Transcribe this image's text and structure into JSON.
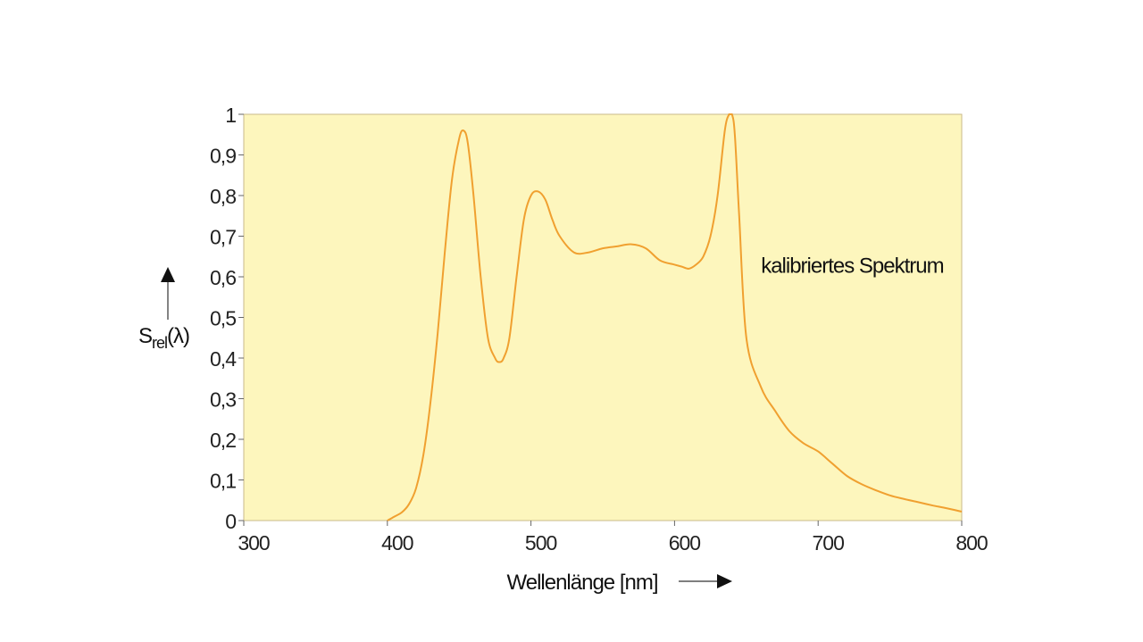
{
  "chart_data": {
    "type": "line",
    "title": "",
    "xlabel": "Wellenlänge [nm]",
    "ylabel": {
      "main": "S",
      "subscript": "rel",
      "suffix": "(λ)"
    },
    "xlim": [
      300,
      800
    ],
    "ylim": [
      0,
      1
    ],
    "xticks": [
      300,
      400,
      500,
      600,
      700,
      800
    ],
    "xtick_labels": [
      "300",
      "400",
      "500",
      "600",
      "700",
      "800"
    ],
    "yticks": [
      0,
      0.1,
      0.2,
      0.3,
      0.4,
      0.5,
      0.6,
      0.7,
      0.8,
      0.9,
      1
    ],
    "ytick_labels": [
      "0",
      "0,1",
      "0,2",
      "0,3",
      "0,4",
      "0,5",
      "0,6",
      "0,7",
      "0,8",
      "0,9",
      "1"
    ],
    "grid": false,
    "background_color": "#fdf6bd",
    "series": [
      {
        "color": "#f0a030",
        "x": [
          400,
          405,
          410,
          415,
          420,
          425,
          430,
          435,
          440,
          445,
          450,
          453,
          456,
          460,
          465,
          470,
          475,
          478,
          481,
          485,
          490,
          495,
          500,
          505,
          510,
          515,
          520,
          530,
          540,
          550,
          560,
          570,
          580,
          590,
          600,
          605,
          610,
          615,
          620,
          625,
          630,
          635,
          638,
          640,
          642,
          645,
          650,
          660,
          670,
          680,
          690,
          700,
          710,
          720,
          730,
          740,
          750,
          760,
          770,
          780,
          790,
          800
        ],
        "y": [
          0.0,
          0.01,
          0.02,
          0.04,
          0.08,
          0.16,
          0.29,
          0.46,
          0.66,
          0.84,
          0.94,
          0.96,
          0.93,
          0.8,
          0.6,
          0.45,
          0.4,
          0.39,
          0.4,
          0.45,
          0.6,
          0.74,
          0.8,
          0.81,
          0.79,
          0.74,
          0.7,
          0.66,
          0.66,
          0.67,
          0.675,
          0.68,
          0.67,
          0.64,
          0.63,
          0.625,
          0.62,
          0.63,
          0.65,
          0.7,
          0.8,
          0.96,
          1.0,
          1.0,
          0.95,
          0.75,
          0.45,
          0.33,
          0.27,
          0.22,
          0.19,
          0.17,
          0.14,
          0.11,
          0.09,
          0.075,
          0.062,
          0.053,
          0.045,
          0.037,
          0.03,
          0.022
        ]
      }
    ],
    "annotations": [
      {
        "text": "kalibriertes Spektrum",
        "x": 700,
        "y": 0.63
      }
    ]
  }
}
